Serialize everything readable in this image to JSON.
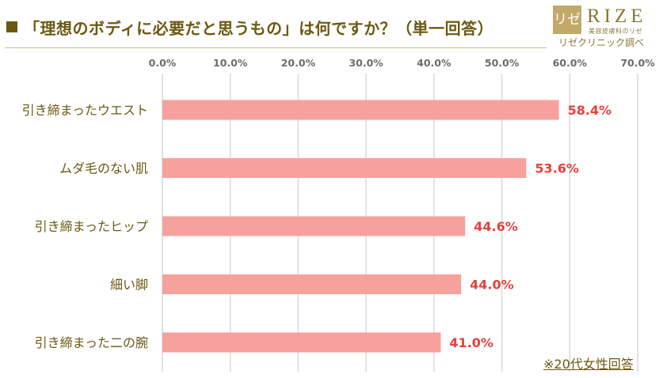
{
  "title": {
    "marker": "■",
    "text": "「理想のボディに必要だと思うもの」は何ですか？（単一回答）"
  },
  "logo": {
    "mark": "リゼ",
    "word": "RIZE",
    "sub": "美容皮膚科のリゼ",
    "caption": "リゼクリニック調べ"
  },
  "footnote": "※20代女性回答",
  "colors": {
    "bar": "#f7a19c",
    "value_label": "#e8403a",
    "category_label": "#6b5810",
    "tick_label": "#6b6b6b",
    "grid": "#d9d9d9",
    "title": "#6b5810"
  },
  "chart_data": {
    "type": "bar",
    "orientation": "horizontal",
    "categories": [
      "引き締まったウエスト",
      "ムダ毛のない肌",
      "引き締まったヒップ",
      "細い脚",
      "引き締まった二の腕"
    ],
    "values": [
      58.4,
      53.6,
      44.6,
      44.0,
      41.0
    ],
    "value_labels": [
      "58.4%",
      "53.6%",
      "44.6%",
      "44.0%",
      "41.0%"
    ],
    "xlim": [
      0,
      70
    ],
    "xticks": [
      0,
      10,
      20,
      30,
      40,
      50,
      60,
      70
    ],
    "xtick_labels": [
      "0.0%",
      "10.0%",
      "20.0%",
      "30.0%",
      "40.0%",
      "50.0%",
      "60.0%",
      "70.0%"
    ],
    "axis_position": "top",
    "grid": true,
    "legend": false
  }
}
